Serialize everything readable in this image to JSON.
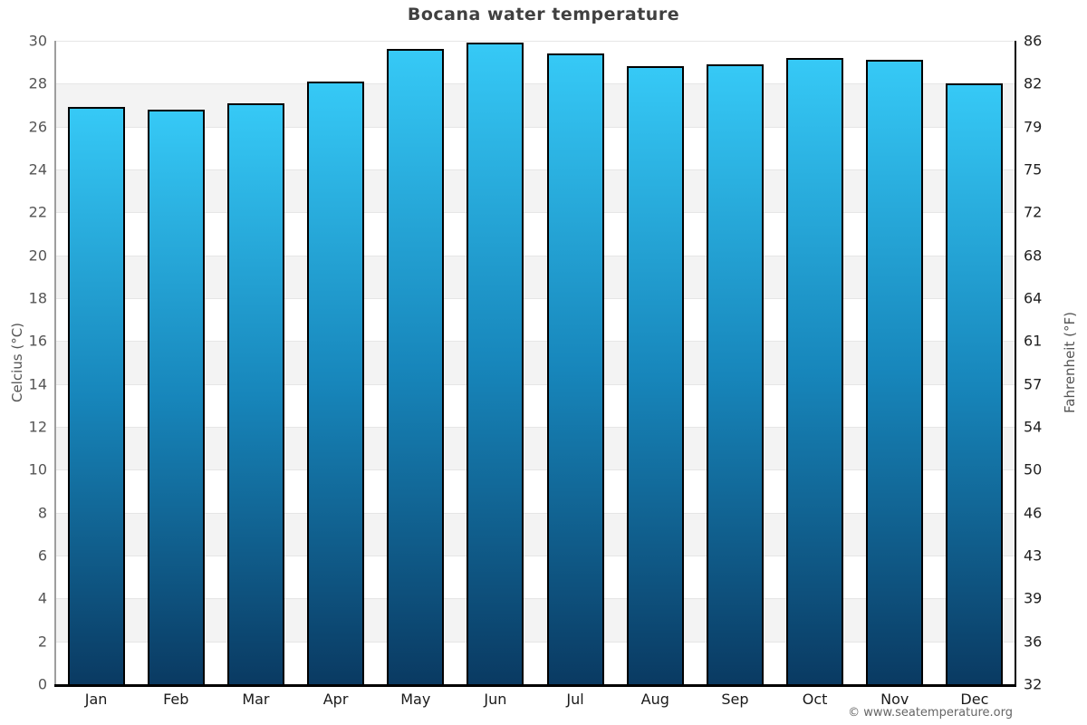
{
  "title": "Bocana water temperature",
  "footer": "© www.seatemperature.org",
  "axes": {
    "left_label": "Celcius (°C)",
    "right_label": "Fahrenheit (°F)"
  },
  "chart_data": {
    "type": "bar",
    "title": "Bocana water temperature",
    "categories": [
      "Jan",
      "Feb",
      "Mar",
      "Apr",
      "May",
      "Jun",
      "Jul",
      "Aug",
      "Sep",
      "Oct",
      "Nov",
      "Dec"
    ],
    "values": [
      26.9,
      26.8,
      27.1,
      28.1,
      29.6,
      29.9,
      29.4,
      28.8,
      28.9,
      29.2,
      29.1,
      28.0
    ],
    "unit": "°C",
    "xlabel": "",
    "ylabel_left": "Celcius (°C)",
    "ylabel_right": "Fahrenheit (°F)",
    "ylim_celsius": [
      0,
      30
    ],
    "yticks_celsius": [
      0,
      2,
      4,
      6,
      8,
      10,
      12,
      14,
      16,
      18,
      20,
      22,
      24,
      26,
      28,
      30
    ],
    "yticks_fahrenheit_labels": [
      "32",
      "36",
      "39",
      "43",
      "46",
      "50",
      "54",
      "57",
      "61",
      "64",
      "68",
      "72",
      "75",
      "79",
      "82",
      "86"
    ],
    "grid": "alternating-horizontal-bands",
    "legend": "none",
    "colors": {
      "bar_gradient_top": "#36c9f6",
      "bar_gradient_mid": "#1786bb",
      "bar_gradient_bottom": "#0a3a62",
      "bar_border": "#000000",
      "band_shaded": "#f3f3f3",
      "band_plain": "#ffffff",
      "gridline": "#e6e6e6",
      "title_text": "#404040",
      "tick_text": "#555555",
      "axis_label_text": "#555555",
      "footer_text": "#666666"
    }
  }
}
